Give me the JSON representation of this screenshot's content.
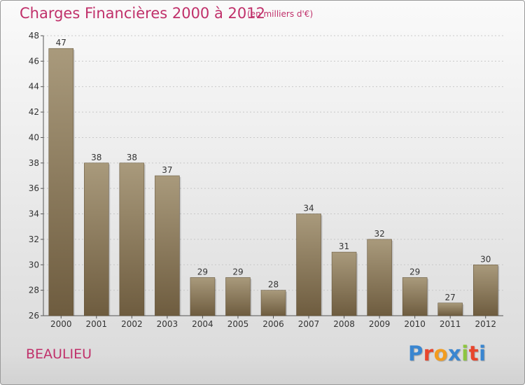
{
  "header": {
    "title": "Charges Financières 2000 à 2012",
    "subtitle": "(en milliers d'€)"
  },
  "footer": {
    "commune": "BEAULIEU",
    "logo_text": "Proxiti",
    "logo_colors": [
      "#3a86d0",
      "#e8452c",
      "#f29c1f",
      "#3a86d0",
      "#8dc63f",
      "#e8452c",
      "#3a86d0"
    ]
  },
  "colors": {
    "bar_top": "#a99a7c",
    "bar_bottom": "#6e5c3f",
    "accent_text": "#c0306a"
  },
  "chart_data": {
    "type": "bar",
    "title": "Charges Financières 2000 à 2012",
    "subtitle": "(en milliers d'€)",
    "categories": [
      "2000",
      "2001",
      "2002",
      "2003",
      "2004",
      "2005",
      "2006",
      "2007",
      "2008",
      "2009",
      "2010",
      "2011",
      "2012"
    ],
    "values": [
      47,
      38,
      38,
      37,
      29,
      29,
      28,
      34,
      31,
      32,
      29,
      27,
      30
    ],
    "ylim": [
      26,
      48
    ],
    "yticks": [
      26,
      28,
      30,
      32,
      34,
      36,
      38,
      40,
      42,
      44,
      46,
      48
    ],
    "grid": true,
    "legend": "none"
  }
}
